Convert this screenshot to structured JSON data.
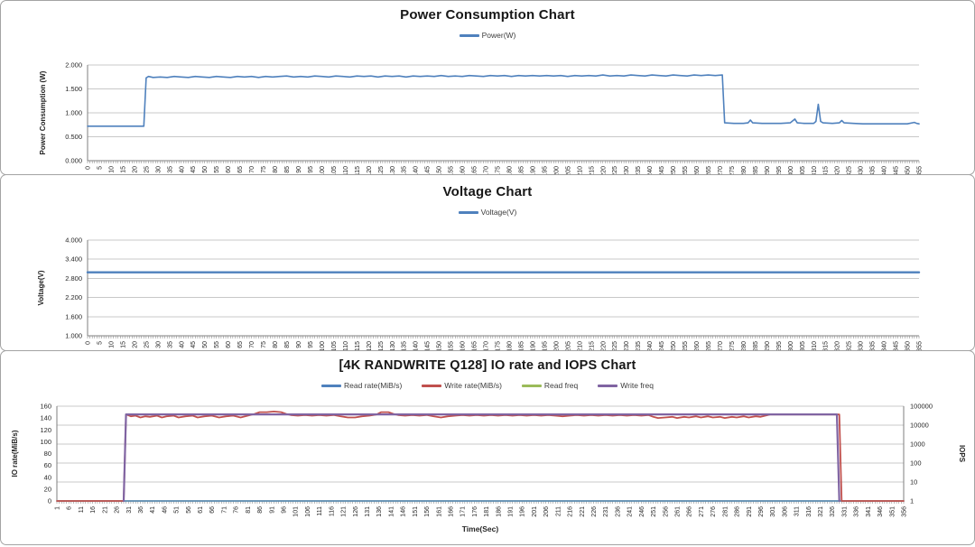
{
  "window": {
    "background": "#ffffff",
    "panel_border": "#a3a3a3",
    "gridline_color": "#c8c8c8",
    "axis_color": "#7f7f7f",
    "accent_blue": "#4F81BD",
    "accent_red": "#C0504D",
    "accent_green": "#9BBB59",
    "accent_purple": "#8064A2"
  },
  "chart_data": [
    {
      "type": "line",
      "title": "Power Consumption Chart",
      "legend_position": "top",
      "grid": "left",
      "x": {
        "min": 0,
        "max": 355,
        "label_step": 5,
        "minor_tick_step": 1,
        "title": ""
      },
      "y_left": {
        "title": "Power Consumption (W)",
        "min": 0,
        "max": 2,
        "step": 0.5,
        "decimals": 3
      },
      "series": [
        {
          "name": "Power(W)",
          "color": "#4F81BD",
          "axis": "left",
          "width": 1.6,
          "z": 1,
          "points": [
            [
              0,
              0.72
            ],
            [
              24,
              0.72
            ],
            [
              25,
              1.73
            ],
            [
              26,
              1.76
            ],
            [
              28,
              1.74
            ],
            [
              31,
              1.75
            ],
            [
              34,
              1.74
            ],
            [
              37,
              1.76
            ],
            [
              40,
              1.75
            ],
            [
              43,
              1.74
            ],
            [
              46,
              1.76
            ],
            [
              49,
              1.75
            ],
            [
              52,
              1.74
            ],
            [
              55,
              1.76
            ],
            [
              58,
              1.75
            ],
            [
              61,
              1.74
            ],
            [
              64,
              1.76
            ],
            [
              67,
              1.75
            ],
            [
              70,
              1.76
            ],
            [
              73,
              1.74
            ],
            [
              76,
              1.76
            ],
            [
              79,
              1.75
            ],
            [
              82,
              1.76
            ],
            [
              85,
              1.77
            ],
            [
              88,
              1.75
            ],
            [
              91,
              1.76
            ],
            [
              94,
              1.75
            ],
            [
              97,
              1.77
            ],
            [
              100,
              1.76
            ],
            [
              103,
              1.75
            ],
            [
              106,
              1.77
            ],
            [
              109,
              1.76
            ],
            [
              112,
              1.75
            ],
            [
              115,
              1.77
            ],
            [
              118,
              1.76
            ],
            [
              121,
              1.77
            ],
            [
              124,
              1.75
            ],
            [
              127,
              1.77
            ],
            [
              130,
              1.76
            ],
            [
              133,
              1.77
            ],
            [
              136,
              1.75
            ],
            [
              139,
              1.77
            ],
            [
              142,
              1.76
            ],
            [
              145,
              1.77
            ],
            [
              148,
              1.76
            ],
            [
              151,
              1.78
            ],
            [
              154,
              1.76
            ],
            [
              157,
              1.77
            ],
            [
              160,
              1.76
            ],
            [
              163,
              1.78
            ],
            [
              166,
              1.77
            ],
            [
              169,
              1.76
            ],
            [
              172,
              1.78
            ],
            [
              175,
              1.77
            ],
            [
              178,
              1.78
            ],
            [
              181,
              1.76
            ],
            [
              184,
              1.78
            ],
            [
              187,
              1.77
            ],
            [
              190,
              1.78
            ],
            [
              193,
              1.77
            ],
            [
              196,
              1.78
            ],
            [
              199,
              1.77
            ],
            [
              202,
              1.78
            ],
            [
              205,
              1.76
            ],
            [
              208,
              1.78
            ],
            [
              211,
              1.77
            ],
            [
              214,
              1.78
            ],
            [
              217,
              1.77
            ],
            [
              220,
              1.79
            ],
            [
              223,
              1.77
            ],
            [
              226,
              1.78
            ],
            [
              229,
              1.77
            ],
            [
              232,
              1.79
            ],
            [
              235,
              1.78
            ],
            [
              238,
              1.77
            ],
            [
              241,
              1.79
            ],
            [
              244,
              1.78
            ],
            [
              247,
              1.77
            ],
            [
              250,
              1.79
            ],
            [
              253,
              1.78
            ],
            [
              256,
              1.77
            ],
            [
              259,
              1.79
            ],
            [
              262,
              1.78
            ],
            [
              265,
              1.79
            ],
            [
              268,
              1.78
            ],
            [
              271,
              1.79
            ],
            [
              272,
              0.79
            ],
            [
              276,
              0.78
            ],
            [
              280,
              0.78
            ],
            [
              282,
              0.79
            ],
            [
              283,
              0.85
            ],
            [
              284,
              0.79
            ],
            [
              288,
              0.78
            ],
            [
              292,
              0.78
            ],
            [
              296,
              0.78
            ],
            [
              300,
              0.79
            ],
            [
              302,
              0.87
            ],
            [
              303,
              0.79
            ],
            [
              306,
              0.78
            ],
            [
              310,
              0.78
            ],
            [
              311,
              0.82
            ],
            [
              312,
              1.18
            ],
            [
              313,
              0.82
            ],
            [
              314,
              0.79
            ],
            [
              318,
              0.78
            ],
            [
              321,
              0.79
            ],
            [
              322,
              0.84
            ],
            [
              323,
              0.79
            ],
            [
              327,
              0.78
            ],
            [
              331,
              0.77
            ],
            [
              336,
              0.77
            ],
            [
              341,
              0.77
            ],
            [
              346,
              0.77
            ],
            [
              350,
              0.77
            ],
            [
              353,
              0.8
            ],
            [
              354,
              0.78
            ],
            [
              355,
              0.77
            ]
          ]
        }
      ]
    },
    {
      "type": "line",
      "title": "Voltage Chart",
      "legend_position": "top",
      "grid": "left",
      "x": {
        "min": 0,
        "max": 355,
        "label_step": 5,
        "minor_tick_step": 1,
        "title": ""
      },
      "y_left": {
        "title": "Voltage(V)",
        "min": 1,
        "max": 4,
        "step": 0.6,
        "decimals": 3
      },
      "series": [
        {
          "name": "Voltage(V)",
          "color": "#4F81BD",
          "axis": "left",
          "width": 2.4,
          "z": 1,
          "points": [
            [
              0,
              2.99
            ],
            [
              355,
              2.99
            ]
          ]
        }
      ]
    },
    {
      "type": "line",
      "title": "[4K RANDWRITE Q128] IO rate and IOPS Chart",
      "legend_position": "top",
      "grid": "right-log",
      "x": {
        "min": 1,
        "max": 356,
        "label_step": 5,
        "minor_tick_step": 1,
        "title": "Time(Sec)"
      },
      "y_left": {
        "title": "IO rate(MiB/s)",
        "min": 0,
        "max": 160,
        "step": 20,
        "decimals": 0
      },
      "y_right": {
        "title": "IOPS",
        "log": true,
        "min": 1,
        "max": 100000
      },
      "series": [
        {
          "name": "Read rate(MiB/s)",
          "color": "#4F81BD",
          "axis": "left",
          "width": 1.5,
          "z": 2,
          "points": [
            [
              1,
              0
            ],
            [
              356,
              0
            ]
          ]
        },
        {
          "name": "Write rate(MiB/s)",
          "color": "#C0504D",
          "axis": "left",
          "width": 1.8,
          "z": 3,
          "points": [
            [
              1,
              0
            ],
            [
              29,
              0
            ],
            [
              30,
              146
            ],
            [
              32,
              143
            ],
            [
              34,
              144
            ],
            [
              36,
              141
            ],
            [
              38,
              143
            ],
            [
              40,
              142
            ],
            [
              43,
              144
            ],
            [
              45,
              141
            ],
            [
              47,
              143
            ],
            [
              50,
              144
            ],
            [
              52,
              141
            ],
            [
              55,
              143
            ],
            [
              58,
              144
            ],
            [
              60,
              141
            ],
            [
              63,
              143
            ],
            [
              66,
              144
            ],
            [
              69,
              141
            ],
            [
              72,
              143
            ],
            [
              75,
              144
            ],
            [
              78,
              141
            ],
            [
              81,
              144
            ],
            [
              84,
              147
            ],
            [
              86,
              150
            ],
            [
              89,
              150
            ],
            [
              92,
              151
            ],
            [
              95,
              150
            ],
            [
              97,
              147
            ],
            [
              99,
              145
            ],
            [
              102,
              144
            ],
            [
              105,
              145
            ],
            [
              108,
              144
            ],
            [
              111,
              145
            ],
            [
              114,
              144
            ],
            [
              117,
              145
            ],
            [
              120,
              143
            ],
            [
              123,
              141
            ],
            [
              126,
              141
            ],
            [
              129,
              143
            ],
            [
              132,
              144
            ],
            [
              135,
              146
            ],
            [
              137,
              150
            ],
            [
              140,
              150
            ],
            [
              142,
              147
            ],
            [
              144,
              145
            ],
            [
              147,
              144
            ],
            [
              150,
              145
            ],
            [
              153,
              144
            ],
            [
              156,
              145
            ],
            [
              159,
              143
            ],
            [
              162,
              141
            ],
            [
              165,
              143
            ],
            [
              168,
              144
            ],
            [
              171,
              145
            ],
            [
              174,
              144
            ],
            [
              177,
              145
            ],
            [
              180,
              144
            ],
            [
              183,
              145
            ],
            [
              186,
              144
            ],
            [
              189,
              145
            ],
            [
              192,
              144
            ],
            [
              195,
              145
            ],
            [
              198,
              144
            ],
            [
              201,
              145
            ],
            [
              204,
              144
            ],
            [
              207,
              145
            ],
            [
              210,
              144
            ],
            [
              213,
              143
            ],
            [
              216,
              144
            ],
            [
              219,
              145
            ],
            [
              222,
              144
            ],
            [
              225,
              145
            ],
            [
              228,
              144
            ],
            [
              231,
              145
            ],
            [
              234,
              144
            ],
            [
              237,
              145
            ],
            [
              240,
              144
            ],
            [
              243,
              145
            ],
            [
              246,
              144
            ],
            [
              249,
              145
            ],
            [
              251,
              142
            ],
            [
              253,
              140
            ],
            [
              256,
              141
            ],
            [
              259,
              142
            ],
            [
              261,
              140
            ],
            [
              264,
              142
            ],
            [
              266,
              141
            ],
            [
              269,
              143
            ],
            [
              271,
              141
            ],
            [
              274,
              143
            ],
            [
              276,
              141
            ],
            [
              279,
              142
            ],
            [
              281,
              140
            ],
            [
              284,
              142
            ],
            [
              286,
              141
            ],
            [
              289,
              143
            ],
            [
              291,
              141
            ],
            [
              294,
              143
            ],
            [
              296,
              142
            ],
            [
              298,
              144
            ],
            [
              300,
              146
            ],
            [
              303,
              146
            ],
            [
              306,
              146
            ],
            [
              310,
              146
            ],
            [
              314,
              146
            ],
            [
              318,
              146
            ],
            [
              322,
              146
            ],
            [
              326,
              146
            ],
            [
              329,
              146
            ],
            [
              330,
              0
            ],
            [
              333,
              0
            ],
            [
              340,
              0
            ],
            [
              348,
              0
            ],
            [
              356,
              0
            ]
          ]
        },
        {
          "name": "Read freq",
          "color": "#9BBB59",
          "axis": "right",
          "width": 1.5,
          "z": 1,
          "points": [
            [
              1,
              1
            ],
            [
              356,
              1
            ]
          ]
        },
        {
          "name": "Write freq",
          "color": "#8064A2",
          "axis": "right",
          "width": 2.2,
          "z": 4,
          "points": [
            [
              29,
              1
            ],
            [
              30,
              37000
            ],
            [
              328,
              37000
            ],
            [
              329,
              1
            ]
          ]
        }
      ]
    }
  ]
}
